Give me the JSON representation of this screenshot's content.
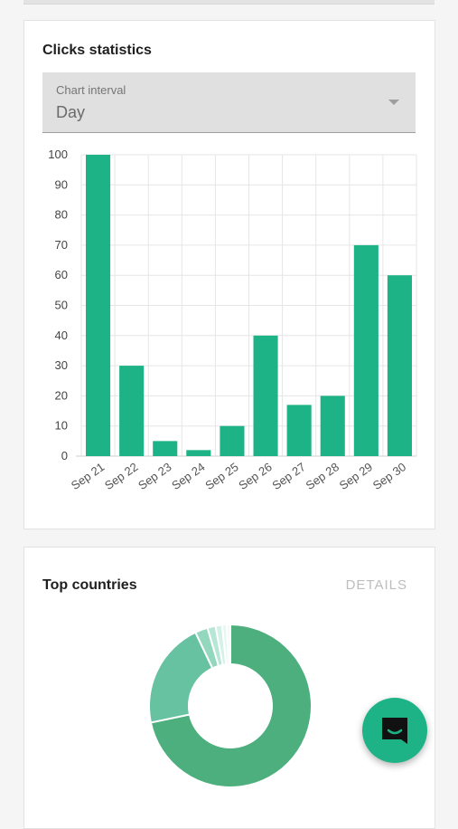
{
  "clicks_card": {
    "title": "Clicks statistics",
    "interval_select": {
      "label": "Chart interval",
      "value": "Day"
    }
  },
  "chart_data": {
    "type": "bar",
    "categories": [
      "Sep 21",
      "Sep 22",
      "Sep 23",
      "Sep 24",
      "Sep 25",
      "Sep 26",
      "Sep 27",
      "Sep 28",
      "Sep 29",
      "Sep 30"
    ],
    "values": [
      100,
      30,
      5,
      2,
      10,
      40,
      17,
      20,
      70,
      60
    ],
    "yticks": [
      0,
      10,
      20,
      30,
      40,
      50,
      60,
      70,
      80,
      90,
      100
    ],
    "ylim": [
      0,
      100
    ],
    "grid": true,
    "bar_color": "#1db386"
  },
  "countries_card": {
    "title": "Top countries",
    "details_label": "DETAILS",
    "donut": {
      "values": [
        71,
        21,
        2.5,
        1.6,
        1.3,
        0.9,
        0.7
      ],
      "colors": [
        "#4caf7d",
        "#66c2a0",
        "#93d7bf",
        "#b6e6d5",
        "#d3f1e7",
        "#e6f7f1",
        "#f2fbf8"
      ]
    }
  },
  "fab": {
    "icon": "chat-icon",
    "color": "#1db386"
  }
}
